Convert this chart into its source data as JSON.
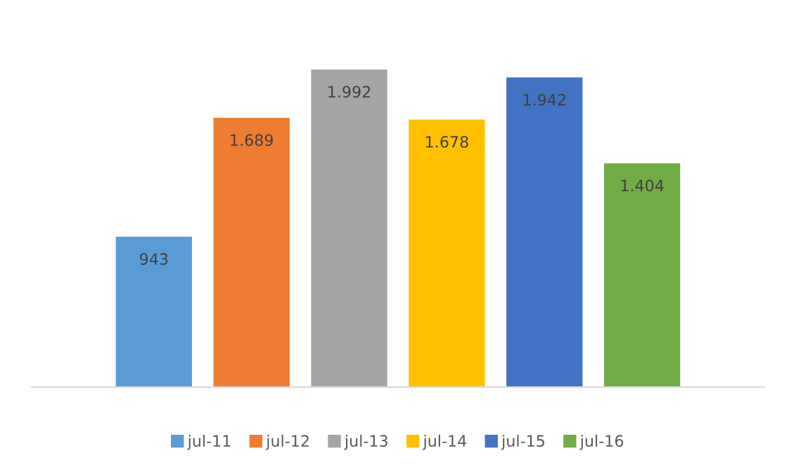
{
  "chart_data": {
    "type": "bar",
    "categories": [
      null
    ],
    "legend": "bottom",
    "series": [
      {
        "name": "jul-11",
        "color": "#5b9bd5",
        "values": [
          943
        ],
        "value_labels": [
          "943"
        ]
      },
      {
        "name": "jul-12",
        "color": "#ed7d31",
        "values": [
          1689
        ],
        "value_labels": [
          "1.689"
        ]
      },
      {
        "name": "jul-13",
        "color": "#a5a5a5",
        "values": [
          1992
        ],
        "value_labels": [
          "1.992"
        ]
      },
      {
        "name": "jul-14",
        "color": "#ffc000",
        "values": [
          1678
        ],
        "value_labels": [
          "1.678"
        ]
      },
      {
        "name": "jul-15",
        "color": "#4472c4",
        "values": [
          1942
        ],
        "value_labels": [
          "1.942"
        ]
      },
      {
        "name": "jul-16",
        "color": "#70ad47",
        "values": [
          1404
        ],
        "value_labels": [
          "1.404"
        ]
      }
    ]
  }
}
